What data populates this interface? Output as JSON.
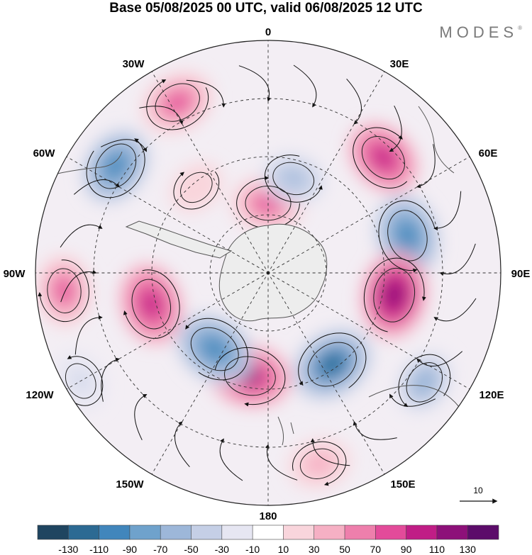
{
  "title": "Base 05/08/2025 00 UTC, valid 06/08/2025 12 UTC",
  "brand": {
    "name": "MODES",
    "mark": "®"
  },
  "map": {
    "projection": "south-polar-stereographic",
    "longitude_labels": [
      "0",
      "30E",
      "60E",
      "90E",
      "120E",
      "150E",
      "180",
      "150W",
      "120W",
      "90W",
      "60W",
      "30W"
    ],
    "anomaly_centers": [
      {
        "lon": 0,
        "r": 0.3,
        "value": 80
      },
      {
        "lon": 15,
        "r": 0.42,
        "value": -60
      },
      {
        "lon": 45,
        "r": 0.7,
        "value": 95
      },
      {
        "lon": 75,
        "r": 0.62,
        "value": -110
      },
      {
        "lon": 100,
        "r": 0.55,
        "value": 125
      },
      {
        "lon": 125,
        "r": 0.82,
        "value": -65
      },
      {
        "lon": 145,
        "r": 0.48,
        "value": -115
      },
      {
        "lon": 165,
        "r": 0.85,
        "value": 45
      },
      {
        "lon": 190,
        "r": 0.45,
        "value": 110
      },
      {
        "lon": 215,
        "r": 0.4,
        "value": -110
      },
      {
        "lon": 255,
        "r": 0.52,
        "value": 105
      },
      {
        "lon": 240,
        "r": 0.93,
        "value": -35
      },
      {
        "lon": 265,
        "r": 0.88,
        "value": 75
      },
      {
        "lon": 305,
        "r": 0.8,
        "value": -95
      },
      {
        "lon": 320,
        "r": 0.48,
        "value": 25
      },
      {
        "lon": 332,
        "r": 0.83,
        "value": 85
      }
    ]
  },
  "colorbar": {
    "levels": [
      "-130",
      "-110",
      "-90",
      "-70",
      "-50",
      "-30",
      "-10",
      "10",
      "30",
      "50",
      "70",
      "90",
      "110",
      "130"
    ],
    "colors": [
      "#1f4560",
      "#2c6a93",
      "#4186bc",
      "#6fa2cc",
      "#9db7d9",
      "#c5cfe6",
      "#e6e6f2",
      "#ffffff",
      "#f9d5dc",
      "#f6b0c4",
      "#ee7fac",
      "#e34b9a",
      "#c01d86",
      "#8d1079",
      "#5c0c6a"
    ]
  },
  "reference_vector": {
    "label": "10"
  }
}
